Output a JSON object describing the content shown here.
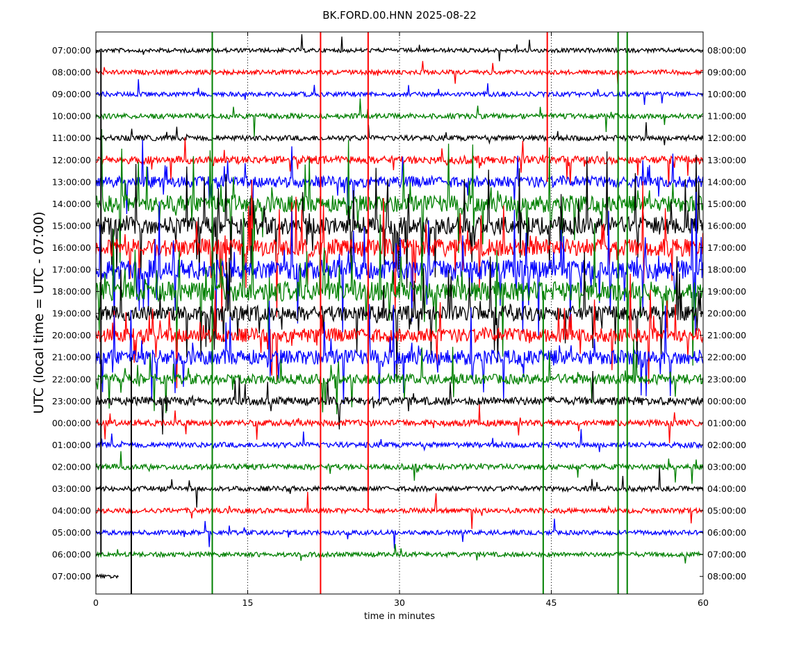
{
  "chart_data": {
    "type": "line",
    "title": "BK.FORD.00.HNN 2025-08-22",
    "xlabel": "time in minutes",
    "ylabel": "UTC (local time = UTC - 07:00)",
    "xlim": [
      0,
      60
    ],
    "x_ticks": [
      "0",
      "15",
      "30",
      "45",
      "60"
    ],
    "x_tick_values": [
      0,
      15,
      30,
      45,
      60
    ],
    "vertical_gridlines": "dotted at 15, 30, 45",
    "colors": [
      "#000000",
      "#ff0000",
      "#0000ff",
      "#008000"
    ],
    "left_labels": [
      "07:00:00",
      "08:00:00",
      "09:00:00",
      "10:00:00",
      "11:00:00",
      "12:00:00",
      "13:00:00",
      "14:00:00",
      "15:00:00",
      "16:00:00",
      "17:00:00",
      "18:00:00",
      "19:00:00",
      "20:00:00",
      "21:00:00",
      "22:00:00",
      "23:00:00",
      "00:00:00",
      "01:00:00",
      "02:00:00",
      "03:00:00",
      "04:00:00",
      "05:00:00",
      "06:00:00",
      "07:00:00"
    ],
    "right_labels": [
      "08:00:00",
      "09:00:00",
      "10:00:00",
      "11:00:00",
      "12:00:00",
      "13:00:00",
      "14:00:00",
      "15:00:00",
      "16:00:00",
      "17:00:00",
      "18:00:00",
      "19:00:00",
      "20:00:00",
      "21:00:00",
      "22:00:00",
      "23:00:00",
      "00:00:00",
      "01:00:00",
      "02:00:00",
      "03:00:00",
      "04:00:00",
      "05:00:00",
      "06:00:00",
      "07:00:00",
      "08:00:00"
    ],
    "line_activity": [
      1.0,
      1.2,
      1.2,
      1.5,
      1.6,
      2.8,
      4.5,
      7.5,
      8.0,
      8.0,
      9.0,
      9.0,
      6.5,
      6.0,
      6.5,
      4.0,
      3.0,
      2.0,
      1.6,
      1.6,
      1.4,
      1.4,
      1.2,
      1.2,
      0.8
    ],
    "last_trace_end_minutes": 2.3,
    "spikes": [
      {
        "x_min": 0.5,
        "color": "#000000",
        "from_row": 0,
        "to_row": 23
      },
      {
        "x_min": 3.5,
        "color": "#000000",
        "from_row": 14,
        "to_row": 24
      },
      {
        "x_min": 11.5,
        "color": "#008000",
        "from_row": -1,
        "to_row": 24
      },
      {
        "x_min": 22.2,
        "color": "#ff0000",
        "from_row": -1,
        "to_row": 24
      },
      {
        "x_min": 26.9,
        "color": "#ff0000",
        "from_row": -1,
        "to_row": 21
      },
      {
        "x_min": 44.6,
        "color": "#ff0000",
        "from_row": -1,
        "to_row": 6
      },
      {
        "x_min": 44.2,
        "color": "#008000",
        "from_row": 11,
        "to_row": 24
      },
      {
        "x_min": 51.6,
        "color": "#008000",
        "from_row": -1,
        "to_row": 24
      },
      {
        "x_min": 52.5,
        "color": "#008000",
        "from_row": -1,
        "to_row": 24
      }
    ]
  }
}
